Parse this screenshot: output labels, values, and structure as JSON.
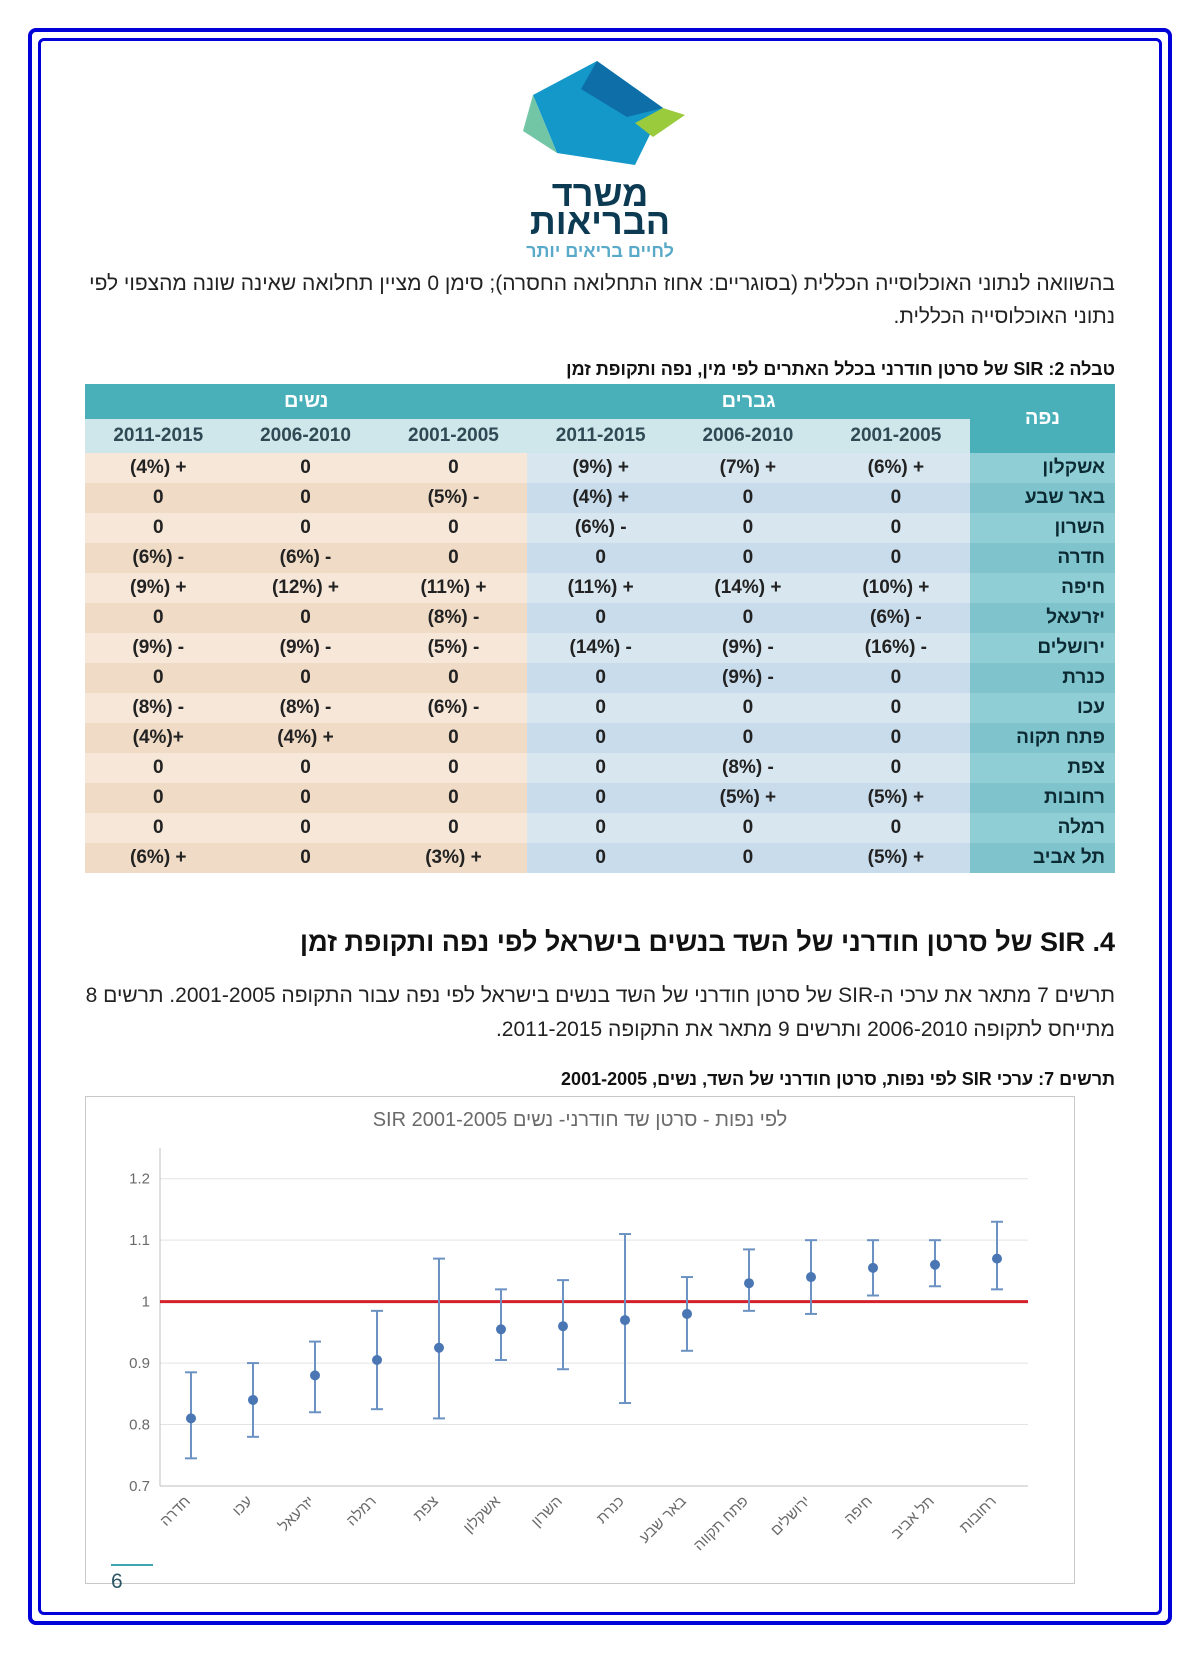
{
  "logo": {
    "line1": "משרד",
    "line2": "הבריאות",
    "sub": "לחיים בריאים יותר"
  },
  "intro": "בהשוואה לנתוני האוכלוסייה הכללית (בסוגריים: אחוז התחלואה החסרה); סימן 0 מציין תחלואה שאינה שונה מהצפוי לפי נתוני האוכלוסייה הכללית.",
  "table": {
    "caption": "טבלה 2: SIR של סרטן חודרני בכלל האתרים לפי מין, נפה ותקופת זמן",
    "region_header": "נפה",
    "groups": [
      "גברים",
      "נשים"
    ],
    "periods": [
      "2001-2005",
      "2006-2010",
      "2011-2015"
    ],
    "rows": [
      {
        "region": "אשקלון",
        "men": [
          "+ (6%)",
          "+ (7%)",
          "+ (9%)"
        ],
        "women": [
          "0",
          "0",
          "+ (4%)"
        ]
      },
      {
        "region": "באר שבע",
        "men": [
          "0",
          "0",
          "+ (4%)"
        ],
        "women": [
          "- (5%)",
          "0",
          "0"
        ]
      },
      {
        "region": "השרון",
        "men": [
          "0",
          "0",
          "- (6%)"
        ],
        "women": [
          "0",
          "0",
          "0"
        ]
      },
      {
        "region": "חדרה",
        "men": [
          "0",
          "0",
          "0"
        ],
        "women": [
          "0",
          "- (6%)",
          "- (6%)"
        ]
      },
      {
        "region": "חיפה",
        "men": [
          "+ (10%)",
          "+ (14%)",
          "+ (11%)"
        ],
        "women": [
          "+ (11%)",
          "+ (12%)",
          "+ (9%)"
        ]
      },
      {
        "region": "יזרעאל",
        "men": [
          "- (6%)",
          "0",
          "0"
        ],
        "women": [
          "- (8%)",
          "0",
          "0"
        ]
      },
      {
        "region": "ירושלים",
        "men": [
          "- (16%)",
          "- (9%)",
          "- (14%)"
        ],
        "women": [
          "- (5%)",
          "- (9%)",
          "- (9%)"
        ]
      },
      {
        "region": "כנרת",
        "men": [
          "0",
          "- (9%)",
          "0"
        ],
        "women": [
          "0",
          "0",
          "0"
        ]
      },
      {
        "region": "עכו",
        "men": [
          "0",
          "0",
          "0"
        ],
        "women": [
          "- (6%)",
          "- (8%)",
          "- (8%)"
        ]
      },
      {
        "region": "פתח תקוה",
        "men": [
          "0",
          "0",
          "0"
        ],
        "women": [
          "0",
          "+ (4%)",
          "+(4%)"
        ]
      },
      {
        "region": "צפת",
        "men": [
          "0",
          "- (8%)",
          "0"
        ],
        "women": [
          "0",
          "0",
          "0"
        ]
      },
      {
        "region": "רחובות",
        "men": [
          "+ (5%)",
          "+ (5%)",
          "0"
        ],
        "women": [
          "0",
          "0",
          "0"
        ]
      },
      {
        "region": "רמלה",
        "men": [
          "0",
          "0",
          "0"
        ],
        "women": [
          "0",
          "0",
          "0"
        ]
      },
      {
        "region": "תל אביב",
        "men": [
          "+ (5%)",
          "0",
          "0"
        ],
        "women": [
          "+ (3%)",
          "0",
          "+ (6%)"
        ]
      }
    ]
  },
  "section": {
    "title": "4.  SIR של סרטן חודרני של השד בנשים בישראל לפי נפה ותקופת זמן",
    "body": "תרשים 7 מתאר את ערכי ה-SIR של סרטן חודרני של השד בנשים בישראל לפי נפה עבור התקופה 2001-2005. תרשים 8 מתייחס לתקופה 2006-2010 ותרשים 9 מתאר את התקופה 2011-2015."
  },
  "chart": {
    "caption": "תרשים 7: ערכי SIR לפי נפות, סרטן חודרני של השד, נשים, 2001-2005",
    "inner_title": "SIR לפי נפות - סרטן שד חודרני- נשים 2001-2005",
    "type": "errorbar",
    "ylim": [
      0.7,
      1.25
    ],
    "yticks": [
      0.7,
      0.8,
      0.9,
      1,
      1.1,
      1.2
    ],
    "ref_line": {
      "y": 1.0,
      "color": "#d3202a",
      "width": 3
    },
    "grid_color": "#e3e3e3",
    "point_color": "#4a77b3",
    "error_color": "#6b92c2",
    "axis_color": "#bfbfbf",
    "tick_label_color": "#6a6a6a",
    "font_size_ticks": 15,
    "categories": [
      "חדרה",
      "עכו",
      "יזרעאל",
      "רמלה",
      "צפת",
      "אשקלון",
      "השרון",
      "כנרת",
      "באר שבע",
      "פתח תקווה",
      "ירושלים",
      "חיפה",
      "תל אביב",
      "רחובות"
    ],
    "values": [
      0.81,
      0.84,
      0.88,
      0.905,
      0.925,
      0.955,
      0.96,
      0.97,
      0.98,
      1.03,
      1.04,
      1.055,
      1.06,
      1.07
    ],
    "low": [
      0.745,
      0.78,
      0.82,
      0.825,
      0.81,
      0.905,
      0.89,
      0.835,
      0.92,
      0.985,
      0.98,
      1.01,
      1.025,
      1.02
    ],
    "high": [
      0.885,
      0.9,
      0.935,
      0.985,
      1.07,
      1.02,
      1.035,
      1.11,
      1.04,
      1.085,
      1.1,
      1.1,
      1.1,
      1.13
    ]
  },
  "page_number": "6"
}
